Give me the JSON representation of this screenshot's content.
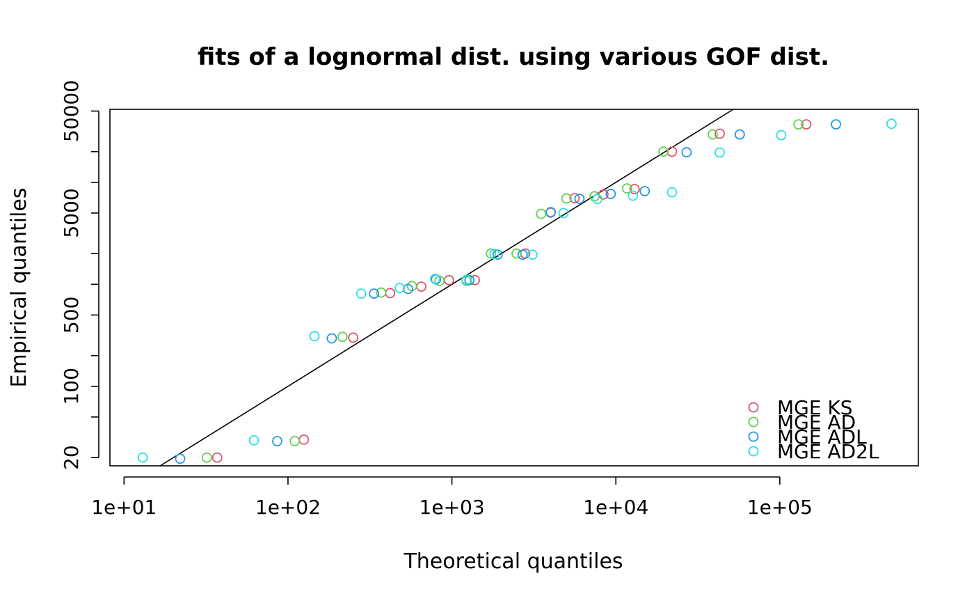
{
  "chart_data": {
    "type": "scatter",
    "title": "fits of a lognormal dist. using various GOF dist.",
    "xlabel": "Theoretical quantiles",
    "ylabel": "Empirical quantiles",
    "xscale": "log",
    "yscale": "log",
    "xlim": [
      8.2,
      700000
    ],
    "ylim": [
      16.6,
      52000
    ],
    "x_ticks": [
      10,
      100,
      1000,
      10000,
      100000
    ],
    "x_tick_labels": [
      "1e+01",
      "1e+02",
      "1e+03",
      "1e+04",
      "1e+05"
    ],
    "y_ticks": [
      20,
      50,
      100,
      200,
      500,
      1000,
      2000,
      5000,
      10000,
      20000,
      50000
    ],
    "y_tick_labels": [
      "20",
      "",
      "100",
      "",
      "500",
      "",
      "",
      "5000",
      "",
      "",
      "50000"
    ],
    "grid": false,
    "legend_position": "bottom-right",
    "reference_line": {
      "description": "y = x",
      "color": "#000000"
    },
    "series": [
      {
        "name": "MGE KS",
        "color": "#DF536B",
        "marker": "open-circle",
        "points": [
          [
            37,
            20
          ],
          [
            125,
            30
          ],
          [
            250,
            300
          ],
          [
            420,
            820
          ],
          [
            650,
            950
          ],
          [
            960,
            1100
          ],
          [
            1380,
            1100
          ],
          [
            2800,
            2000
          ],
          [
            4000,
            5050
          ],
          [
            5600,
            7000
          ],
          [
            8400,
            7600
          ],
          [
            13000,
            8600
          ],
          [
            22000,
            20000
          ],
          [
            43000,
            30000
          ],
          [
            145000,
            37000
          ]
        ]
      },
      {
        "name": "MGE AD",
        "color": "#61D04F",
        "marker": "open-circle",
        "points": [
          [
            32,
            20
          ],
          [
            110,
            29
          ],
          [
            215,
            305
          ],
          [
            370,
            830
          ],
          [
            570,
            960
          ],
          [
            840,
            1080
          ],
          [
            1230,
            1080
          ],
          [
            1730,
            2000
          ],
          [
            2480,
            2000
          ],
          [
            3500,
            4900
          ],
          [
            5000,
            6950
          ],
          [
            7400,
            7300
          ],
          [
            11700,
            8700
          ],
          [
            19500,
            20000
          ],
          [
            39000,
            29500
          ],
          [
            130000,
            37000
          ]
        ]
      },
      {
        "name": "MGE ADL",
        "color": "#2297E6",
        "marker": "open-circle",
        "points": [
          [
            22,
            19.5
          ],
          [
            86,
            29
          ],
          [
            185,
            295
          ],
          [
            335,
            810
          ],
          [
            540,
            900
          ],
          [
            800,
            1120
          ],
          [
            1280,
            1100
          ],
          [
            1900,
            1950
          ],
          [
            2700,
            1950
          ],
          [
            4000,
            5100
          ],
          [
            6000,
            6900
          ],
          [
            9300,
            7700
          ],
          [
            15000,
            8200
          ],
          [
            27000,
            19700
          ],
          [
            57000,
            29500
          ],
          [
            220000,
            37000
          ]
        ]
      },
      {
        "name": "MGE AD2L",
        "color": "#28E2E5",
        "marker": "open-circle",
        "points": [
          [
            13,
            20
          ],
          [
            62,
            29.5
          ],
          [
            145,
            310
          ],
          [
            280,
            810
          ],
          [
            480,
            920
          ],
          [
            790,
            1130
          ],
          [
            1230,
            1110
          ],
          [
            1820,
            1980
          ],
          [
            3100,
            1950
          ],
          [
            4800,
            5000
          ],
          [
            7700,
            6850
          ],
          [
            12700,
            7400
          ],
          [
            22000,
            8000
          ],
          [
            43000,
            19600
          ],
          [
            102000,
            29000
          ],
          [
            480000,
            37500
          ]
        ]
      }
    ]
  }
}
